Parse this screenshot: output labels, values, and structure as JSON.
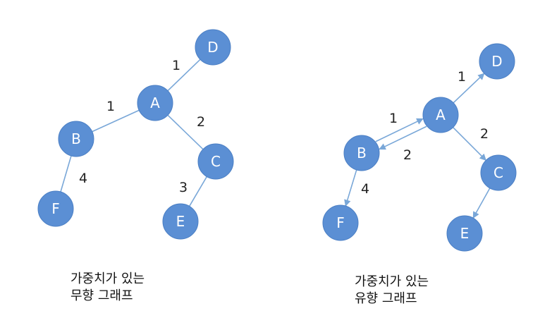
{
  "undirected": {
    "nodes": [
      "A",
      "B",
      "C",
      "D",
      "E",
      "F"
    ],
    "edges": [
      {
        "from": "A",
        "to": "D",
        "weight": "1"
      },
      {
        "from": "A",
        "to": "B",
        "weight": "1"
      },
      {
        "from": "A",
        "to": "C",
        "weight": "2"
      },
      {
        "from": "B",
        "to": "F",
        "weight": "4"
      },
      {
        "from": "C",
        "to": "E",
        "weight": "3"
      }
    ],
    "caption": [
      "가중치가 있는",
      "무향 그래프"
    ]
  },
  "directed": {
    "nodes": [
      "A",
      "B",
      "C",
      "D",
      "E",
      "F"
    ],
    "edges": [
      {
        "from": "A",
        "to": "D",
        "weight": "1"
      },
      {
        "from": "A",
        "to": "B",
        "weight": "1"
      },
      {
        "from": "B",
        "to": "A",
        "weight": "2"
      },
      {
        "from": "A",
        "to": "C",
        "weight": "2"
      },
      {
        "from": "B",
        "to": "F",
        "weight": "4"
      },
      {
        "from": "C",
        "to": "E",
        "weight": ""
      }
    ],
    "caption": [
      "가중치가 있는",
      "유향 그래프"
    ]
  },
  "colors": {
    "node_fill": "#5b8fd4",
    "edge": "#79a7d8",
    "node_text": "#ffffff"
  }
}
